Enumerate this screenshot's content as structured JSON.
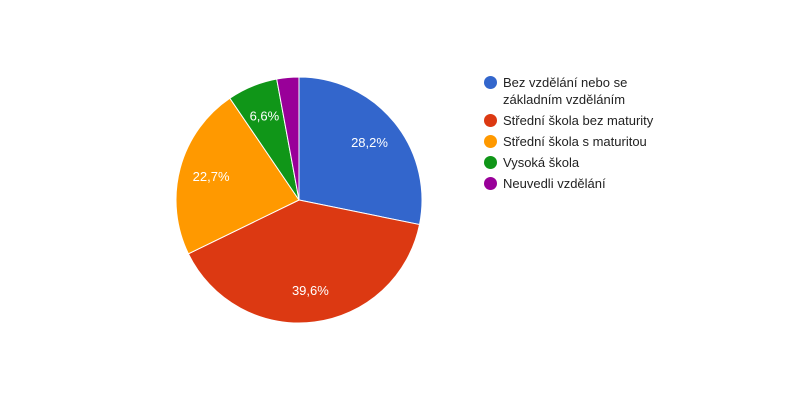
{
  "chart_data": {
    "type": "pie",
    "labels": [
      "Bez vzdělání nebo se základním vzděláním",
      "Střední škola bez maturity",
      "Střední škola s maturitou",
      "Vysoká škola",
      "Neuvedli vzdělání"
    ],
    "values": [
      28.2,
      39.6,
      22.7,
      6.6,
      2.9
    ],
    "value_labels": [
      "28,2%",
      "39,6%",
      "22,7%",
      "6,6%",
      ""
    ],
    "colors": [
      "#3366cc",
      "#dc3912",
      "#ff9900",
      "#109618",
      "#990099"
    ],
    "legend_position": "right"
  }
}
